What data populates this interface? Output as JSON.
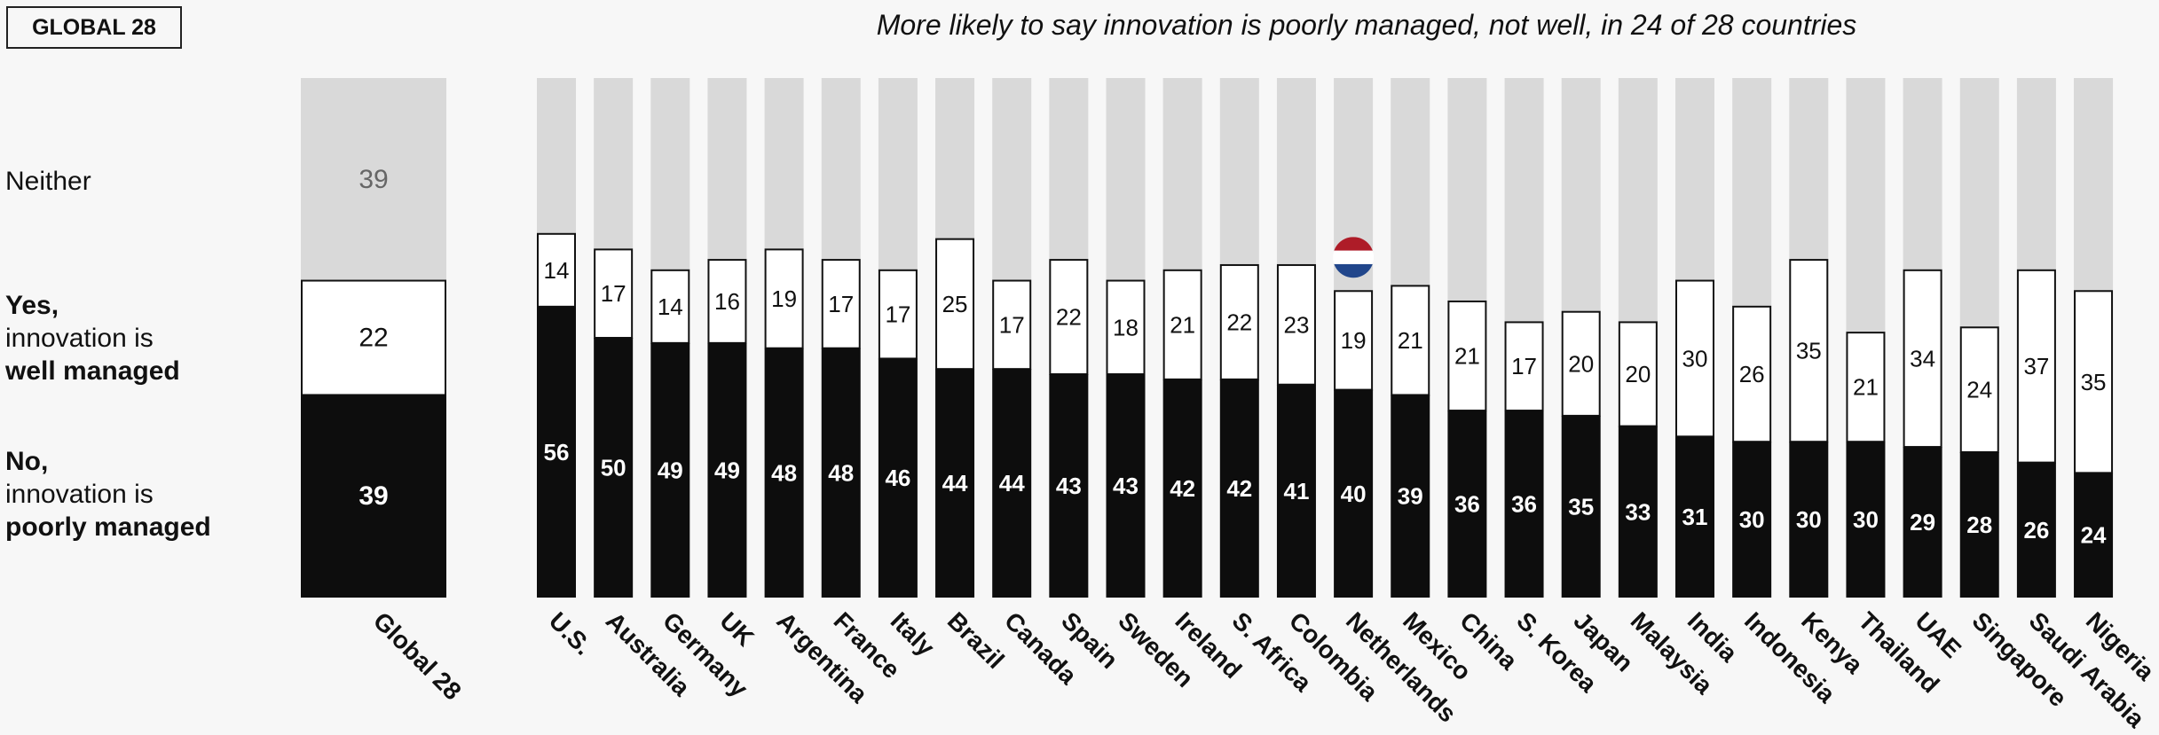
{
  "badge": "GLOBAL 28",
  "title": "More likely to say innovation is poorly managed, not well, in 24 of 28 countries",
  "legend": {
    "neither": "Neither",
    "yes_line1": "Yes,",
    "yes_line2": "innovation is",
    "yes_line3": "well managed",
    "no_line1": "No,",
    "no_line2": "innovation is",
    "no_line3": "poorly managed"
  },
  "colors": {
    "poorly_managed": "#0d0d0d",
    "well_managed": "#ffffff",
    "neither": "#d9d9d9",
    "flag_red": "#ae1c28",
    "flag_blue": "#21468b"
  },
  "highlighted_country": "Netherlands",
  "chart_data": {
    "type": "bar",
    "stacked": true,
    "unit": "%",
    "ylim": [
      0,
      100
    ],
    "global": {
      "label": "Global 28",
      "no": 39,
      "yes": 22,
      "neither": 39
    },
    "categories": [
      "U.S.",
      "Australia",
      "Germany",
      "UK",
      "Argentina",
      "France",
      "Italy",
      "Brazil",
      "Canada",
      "Spain",
      "Sweden",
      "Ireland",
      "S. Africa",
      "Colombia",
      "Netherlands",
      "Mexico",
      "China",
      "S. Korea",
      "Japan",
      "Malaysia",
      "India",
      "Indonesia",
      "Kenya",
      "Thailand",
      "UAE",
      "Singapore",
      "Saudi Arabia",
      "Nigeria"
    ],
    "series": [
      {
        "name": "No, innovation is poorly managed",
        "values": [
          56,
          50,
          49,
          49,
          48,
          48,
          46,
          44,
          44,
          43,
          43,
          42,
          42,
          41,
          40,
          39,
          36,
          36,
          35,
          33,
          31,
          30,
          30,
          30,
          29,
          28,
          26,
          24
        ]
      },
      {
        "name": "Yes, innovation is well managed",
        "values": [
          14,
          17,
          14,
          16,
          19,
          17,
          17,
          25,
          17,
          22,
          18,
          21,
          22,
          23,
          19,
          21,
          21,
          17,
          20,
          20,
          30,
          26,
          35,
          21,
          34,
          24,
          37,
          35
        ]
      },
      {
        "name": "Neither"
      }
    ]
  }
}
